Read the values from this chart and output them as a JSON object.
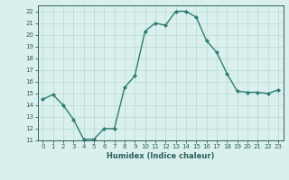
{
  "x": [
    0,
    1,
    2,
    3,
    4,
    5,
    6,
    7,
    8,
    9,
    10,
    11,
    12,
    13,
    14,
    15,
    16,
    17,
    18,
    19,
    20,
    21,
    22,
    23
  ],
  "y": [
    14.5,
    14.9,
    14.0,
    12.8,
    11.1,
    11.1,
    12.0,
    12.0,
    15.5,
    16.5,
    20.3,
    21.0,
    20.8,
    22.0,
    22.0,
    21.5,
    19.5,
    18.5,
    16.7,
    15.2,
    15.1,
    15.1,
    15.0,
    15.3
  ],
  "xlabel": "Humidex (Indice chaleur)",
  "ylim": [
    11,
    22.5
  ],
  "xlim": [
    -0.5,
    23.5
  ],
  "yticks": [
    11,
    12,
    13,
    14,
    15,
    16,
    17,
    18,
    19,
    20,
    21,
    22
  ],
  "xticks": [
    0,
    1,
    2,
    3,
    4,
    5,
    6,
    7,
    8,
    9,
    10,
    11,
    12,
    13,
    14,
    15,
    16,
    17,
    18,
    19,
    20,
    21,
    22,
    23
  ],
  "line_color": "#2e7d6e",
  "marker_color": "#2e7d6e",
  "bg_color": "#d9f0ee",
  "grid_color": "#b8d8d4",
  "tick_label_color": "#2e5f58",
  "axis_label_color": "#2e5f58"
}
